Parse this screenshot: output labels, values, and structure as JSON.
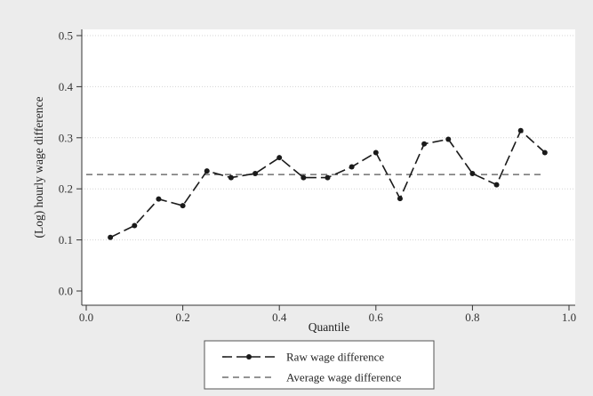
{
  "chart_data": {
    "type": "line",
    "title": "",
    "xlabel": "Quantile",
    "ylabel": "(Log) hourly wage difference",
    "xlim": [
      0.0,
      1.0
    ],
    "ylim": [
      0.0,
      0.5
    ],
    "xticks": [
      "0.0",
      "0.2",
      "0.4",
      "0.6",
      "0.8",
      "1.0"
    ],
    "yticks": [
      "0.0",
      "0.1",
      "0.2",
      "0.3",
      "0.4",
      "0.5"
    ],
    "grid": "horizontal, light dotted",
    "legend_position": "bottom-center",
    "series": [
      {
        "name": "Raw wage difference",
        "style": "long-dash line with dot markers",
        "color": "#1a1a1a",
        "x": [
          0.05,
          0.1,
          0.15,
          0.2,
          0.25,
          0.3,
          0.35,
          0.4,
          0.45,
          0.5,
          0.55,
          0.6,
          0.65,
          0.7,
          0.75,
          0.8,
          0.85,
          0.9,
          0.95
        ],
        "y": [
          0.105,
          0.128,
          0.18,
          0.167,
          0.235,
          0.222,
          0.23,
          0.261,
          0.222,
          0.222,
          0.243,
          0.271,
          0.181,
          0.288,
          0.297,
          0.23,
          0.208,
          0.314,
          0.271
        ]
      },
      {
        "name": "Average wage difference",
        "style": "short-dash line",
        "color": "#555555",
        "x": [
          0.0,
          0.95
        ],
        "y": [
          0.228,
          0.228
        ]
      }
    ]
  }
}
